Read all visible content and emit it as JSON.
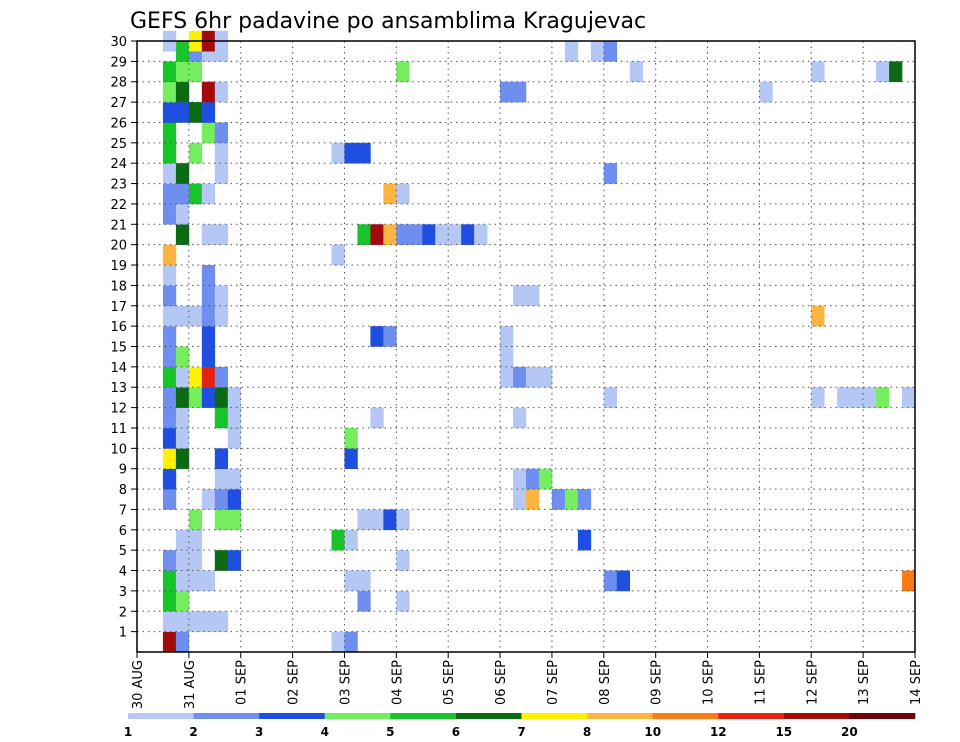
{
  "chart_data": {
    "type": "heatmap",
    "title": "GEFS 6hr padavine po ansamblima Kragujevac",
    "xlabel": "",
    "ylabel": "",
    "x_tick_labels": [
      "30 AUG",
      "31 AUG",
      "01 SEP",
      "02 SEP",
      "03 SEP",
      "04 SEP",
      "05 SEP",
      "06 SEP",
      "07 SEP",
      "08 SEP",
      "09 SEP",
      "10 SEP",
      "11 SEP",
      "12 SEP",
      "13 SEP",
      "14 SEP"
    ],
    "xlim": [
      0,
      60
    ],
    "y_tick_labels": [
      "1",
      "2",
      "3",
      "4",
      "5",
      "6",
      "7",
      "8",
      "9",
      "10",
      "11",
      "12",
      "13",
      "14",
      "15",
      "16",
      "17",
      "18",
      "19",
      "20",
      "21",
      "22",
      "23",
      "24",
      "25",
      "26",
      "27",
      "28",
      "29",
      "30"
    ],
    "ylim": [
      0,
      30
    ],
    "x_unit": "6-hour step (4 steps per day)",
    "y_unit": "ensemble member",
    "grid": true,
    "legend": {
      "placement": "bottom",
      "labels": [
        "1",
        "2",
        "3",
        "4",
        "5",
        "6",
        "7",
        "8",
        "10",
        "12",
        "15",
        "20"
      ],
      "colors": [
        "#b4c7f5",
        "#6e8ff0",
        "#1f4fe0",
        "#74ee5f",
        "#17c42a",
        "#0b6b12",
        "#fff200",
        "#fdb53f",
        "#fc7a12",
        "#e5220d",
        "#a30b0b",
        "#6b0606"
      ]
    },
    "cells": [
      {
        "m": 0,
        "s": 2,
        "v": 11
      },
      {
        "m": 0,
        "s": 3,
        "v": 2
      },
      {
        "m": 0,
        "s": 15,
        "v": 1
      },
      {
        "m": 0,
        "s": 16,
        "v": 2
      },
      {
        "m": 1,
        "s": 2,
        "v": 1
      },
      {
        "m": 1,
        "s": 3,
        "v": 1
      },
      {
        "m": 1,
        "s": 4,
        "v": 1
      },
      {
        "m": 1,
        "s": 5,
        "v": 1
      },
      {
        "m": 1,
        "s": 6,
        "v": 1
      },
      {
        "m": 2,
        "s": 2,
        "v": 5
      },
      {
        "m": 2,
        "s": 3,
        "v": 4
      },
      {
        "m": 2,
        "s": 17,
        "v": 2
      },
      {
        "m": 2,
        "s": 20,
        "v": 1
      },
      {
        "m": 3,
        "s": 2,
        "v": 5
      },
      {
        "m": 3,
        "s": 3,
        "v": 1
      },
      {
        "m": 3,
        "s": 4,
        "v": 1
      },
      {
        "m": 3,
        "s": 5,
        "v": 1
      },
      {
        "m": 3,
        "s": 16,
        "v": 1
      },
      {
        "m": 3,
        "s": 17,
        "v": 1
      },
      {
        "m": 3,
        "s": 36,
        "v": 2
      },
      {
        "m": 3,
        "s": 37,
        "v": 3
      },
      {
        "m": 3,
        "s": 59,
        "v": 9
      },
      {
        "m": 3,
        "s": 60,
        "v": 5
      },
      {
        "m": 4,
        "s": 2,
        "v": 2
      },
      {
        "m": 4,
        "s": 3,
        "v": 1
      },
      {
        "m": 4,
        "s": 4,
        "v": 1
      },
      {
        "m": 4,
        "s": 6,
        "v": 6
      },
      {
        "m": 4,
        "s": 7,
        "v": 3
      },
      {
        "m": 4,
        "s": 20,
        "v": 1
      },
      {
        "m": 5,
        "s": 3,
        "v": 1
      },
      {
        "m": 5,
        "s": 4,
        "v": 1
      },
      {
        "m": 5,
        "s": 15,
        "v": 5
      },
      {
        "m": 5,
        "s": 16,
        "v": 1
      },
      {
        "m": 5,
        "s": 34,
        "v": 3
      },
      {
        "m": 6,
        "s": 4,
        "v": 4
      },
      {
        "m": 6,
        "s": 6,
        "v": 4
      },
      {
        "m": 6,
        "s": 7,
        "v": 4
      },
      {
        "m": 6,
        "s": 17,
        "v": 1
      },
      {
        "m": 6,
        "s": 18,
        "v": 1
      },
      {
        "m": 6,
        "s": 19,
        "v": 3
      },
      {
        "m": 6,
        "s": 20,
        "v": 1
      },
      {
        "m": 7,
        "s": 2,
        "v": 2
      },
      {
        "m": 7,
        "s": 5,
        "v": 1
      },
      {
        "m": 7,
        "s": 6,
        "v": 2
      },
      {
        "m": 7,
        "s": 7,
        "v": 3
      },
      {
        "m": 7,
        "s": 29,
        "v": 1
      },
      {
        "m": 7,
        "s": 30,
        "v": 8
      },
      {
        "m": 7,
        "s": 32,
        "v": 2
      },
      {
        "m": 7,
        "s": 33,
        "v": 4
      },
      {
        "m": 7,
        "s": 34,
        "v": 2
      },
      {
        "m": 8,
        "s": 2,
        "v": 3
      },
      {
        "m": 8,
        "s": 6,
        "v": 1
      },
      {
        "m": 8,
        "s": 7,
        "v": 1
      },
      {
        "m": 8,
        "s": 29,
        "v": 1
      },
      {
        "m": 8,
        "s": 30,
        "v": 2
      },
      {
        "m": 8,
        "s": 31,
        "v": 4
      },
      {
        "m": 9,
        "s": 2,
        "v": 7
      },
      {
        "m": 9,
        "s": 3,
        "v": 6
      },
      {
        "m": 9,
        "s": 6,
        "v": 3
      },
      {
        "m": 9,
        "s": 16,
        "v": 3
      },
      {
        "m": 10,
        "s": 2,
        "v": 3
      },
      {
        "m": 10,
        "s": 3,
        "v": 1
      },
      {
        "m": 10,
        "s": 7,
        "v": 1
      },
      {
        "m": 10,
        "s": 16,
        "v": 4
      },
      {
        "m": 11,
        "s": 2,
        "v": 2
      },
      {
        "m": 11,
        "s": 3,
        "v": 1
      },
      {
        "m": 11,
        "s": 6,
        "v": 5
      },
      {
        "m": 11,
        "s": 7,
        "v": 6
      },
      {
        "m": 11,
        "s": 7,
        "v": 1
      },
      {
        "m": 11,
        "s": 18,
        "v": 1
      },
      {
        "m": 11,
        "s": 29,
        "v": 1
      },
      {
        "m": 12,
        "s": 2,
        "v": 2
      },
      {
        "m": 12,
        "s": 3,
        "v": 6
      },
      {
        "m": 12,
        "s": 4,
        "v": 4
      },
      {
        "m": 12,
        "s": 5,
        "v": 3
      },
      {
        "m": 12,
        "s": 6,
        "v": 6
      },
      {
        "m": 12,
        "s": 7,
        "v": 1
      },
      {
        "m": 12,
        "s": 36,
        "v": 1
      },
      {
        "m": 12,
        "s": 52,
        "v": 1
      },
      {
        "m": 12,
        "s": 54,
        "v": 1
      },
      {
        "m": 12,
        "s": 55,
        "v": 1
      },
      {
        "m": 12,
        "s": 56,
        "v": 1
      },
      {
        "m": 12,
        "s": 57,
        "v": 4
      },
      {
        "m": 12,
        "s": 59,
        "v": 1
      },
      {
        "m": 13,
        "s": 2,
        "v": 5
      },
      {
        "m": 13,
        "s": 3,
        "v": 1
      },
      {
        "m": 13,
        "s": 4,
        "v": 7
      },
      {
        "m": 13,
        "s": 5,
        "v": 10
      },
      {
        "m": 13,
        "s": 6,
        "v": 2
      },
      {
        "m": 13,
        "s": 28,
        "v": 1
      },
      {
        "m": 13,
        "s": 29,
        "v": 2
      },
      {
        "m": 13,
        "s": 30,
        "v": 1
      },
      {
        "m": 13,
        "s": 31,
        "v": 1
      },
      {
        "m": 14,
        "s": 2,
        "v": 2
      },
      {
        "m": 14,
        "s": 3,
        "v": 4
      },
      {
        "m": 14,
        "s": 5,
        "v": 3
      },
      {
        "m": 14,
        "s": 28,
        "v": 1
      },
      {
        "m": 15,
        "s": 2,
        "v": 2
      },
      {
        "m": 15,
        "s": 5,
        "v": 3
      },
      {
        "m": 15,
        "s": 18,
        "v": 3
      },
      {
        "m": 15,
        "s": 19,
        "v": 2
      },
      {
        "m": 15,
        "s": 28,
        "v": 1
      },
      {
        "m": 16,
        "s": 2,
        "v": 1
      },
      {
        "m": 16,
        "s": 3,
        "v": 1
      },
      {
        "m": 16,
        "s": 4,
        "v": 1
      },
      {
        "m": 16,
        "s": 5,
        "v": 2
      },
      {
        "m": 16,
        "s": 6,
        "v": 1
      },
      {
        "m": 16,
        "s": 52,
        "v": 8
      },
      {
        "m": 17,
        "s": 2,
        "v": 2
      },
      {
        "m": 17,
        "s": 5,
        "v": 2
      },
      {
        "m": 17,
        "s": 6,
        "v": 1
      },
      {
        "m": 17,
        "s": 29,
        "v": 1
      },
      {
        "m": 17,
        "s": 30,
        "v": 1
      },
      {
        "m": 18,
        "s": 2,
        "v": 1
      },
      {
        "m": 18,
        "s": 5,
        "v": 2
      },
      {
        "m": 19,
        "s": 2,
        "v": 8
      },
      {
        "m": 19,
        "s": 15,
        "v": 1
      },
      {
        "m": 20,
        "s": 3,
        "v": 6
      },
      {
        "m": 20,
        "s": 5,
        "v": 1
      },
      {
        "m": 20,
        "s": 6,
        "v": 1
      },
      {
        "m": 20,
        "s": 17,
        "v": 5
      },
      {
        "m": 20,
        "s": 18,
        "v": 11
      },
      {
        "m": 20,
        "s": 19,
        "v": 8
      },
      {
        "m": 20,
        "s": 20,
        "v": 2
      },
      {
        "m": 20,
        "s": 21,
        "v": 2
      },
      {
        "m": 20,
        "s": 22,
        "v": 3
      },
      {
        "m": 20,
        "s": 23,
        "v": 1
      },
      {
        "m": 20,
        "s": 24,
        "v": 1
      },
      {
        "m": 20,
        "s": 25,
        "v": 3
      },
      {
        "m": 20,
        "s": 26,
        "v": 1
      },
      {
        "m": 21,
        "s": 2,
        "v": 2
      },
      {
        "m": 21,
        "s": 3,
        "v": 1
      },
      {
        "m": 22,
        "s": 2,
        "v": 2
      },
      {
        "m": 22,
        "s": 3,
        "v": 2
      },
      {
        "m": 22,
        "s": 4,
        "v": 5
      },
      {
        "m": 22,
        "s": 5,
        "v": 1
      },
      {
        "m": 22,
        "s": 19,
        "v": 8
      },
      {
        "m": 22,
        "s": 20,
        "v": 1
      },
      {
        "m": 23,
        "s": 2,
        "v": 1
      },
      {
        "m": 23,
        "s": 3,
        "v": 6
      },
      {
        "m": 23,
        "s": 6,
        "v": 1
      },
      {
        "m": 23,
        "s": 36,
        "v": 2
      },
      {
        "m": 24,
        "s": 2,
        "v": 5
      },
      {
        "m": 24,
        "s": 4,
        "v": 4
      },
      {
        "m": 24,
        "s": 6,
        "v": 1
      },
      {
        "m": 24,
        "s": 15,
        "v": 1
      },
      {
        "m": 24,
        "s": 16,
        "v": 3
      },
      {
        "m": 24,
        "s": 17,
        "v": 3
      },
      {
        "m": 25,
        "s": 2,
        "v": 5
      },
      {
        "m": 25,
        "s": 5,
        "v": 4
      },
      {
        "m": 25,
        "s": 6,
        "v": 2
      },
      {
        "m": 26,
        "s": 2,
        "v": 3
      },
      {
        "m": 26,
        "s": 3,
        "v": 3
      },
      {
        "m": 26,
        "s": 4,
        "v": 6
      },
      {
        "m": 26,
        "s": 5,
        "v": 3
      },
      {
        "m": 27,
        "s": 2,
        "v": 4
      },
      {
        "m": 27,
        "s": 3,
        "v": 6
      },
      {
        "m": 27,
        "s": 5,
        "v": 11
      },
      {
        "m": 27,
        "s": 6,
        "v": 1
      },
      {
        "m": 27,
        "s": 28,
        "v": 2
      },
      {
        "m": 27,
        "s": 29,
        "v": 2
      },
      {
        "m": 27,
        "s": 48,
        "v": 1
      },
      {
        "m": 28,
        "s": 2,
        "v": 5
      },
      {
        "m": 28,
        "s": 3,
        "v": 4
      },
      {
        "m": 28,
        "s": 4,
        "v": 4
      },
      {
        "m": 28,
        "s": 20,
        "v": 4
      },
      {
        "m": 28,
        "s": 38,
        "v": 1
      },
      {
        "m": 28,
        "s": 52,
        "v": 1
      },
      {
        "m": 28,
        "s": 57,
        "v": 1
      },
      {
        "m": 28,
        "s": 58,
        "v": 6
      },
      {
        "m": 29,
        "s": 3,
        "v": 5
      },
      {
        "m": 29,
        "s": 4,
        "v": 2
      },
      {
        "m": 29,
        "s": 5,
        "v": 1
      },
      {
        "m": 29,
        "s": 6,
        "v": 1
      },
      {
        "m": 29,
        "s": 33,
        "v": 1
      },
      {
        "m": 29,
        "s": 35,
        "v": 1
      },
      {
        "m": 29,
        "s": 36,
        "v": 2
      },
      {
        "m": 30,
        "s": 2,
        "v": 1
      },
      {
        "m": 30,
        "s": 4,
        "v": 7
      },
      {
        "m": 30,
        "s": 5,
        "v": 11
      },
      {
        "m": 30,
        "s": 6,
        "v": 1
      }
    ]
  }
}
